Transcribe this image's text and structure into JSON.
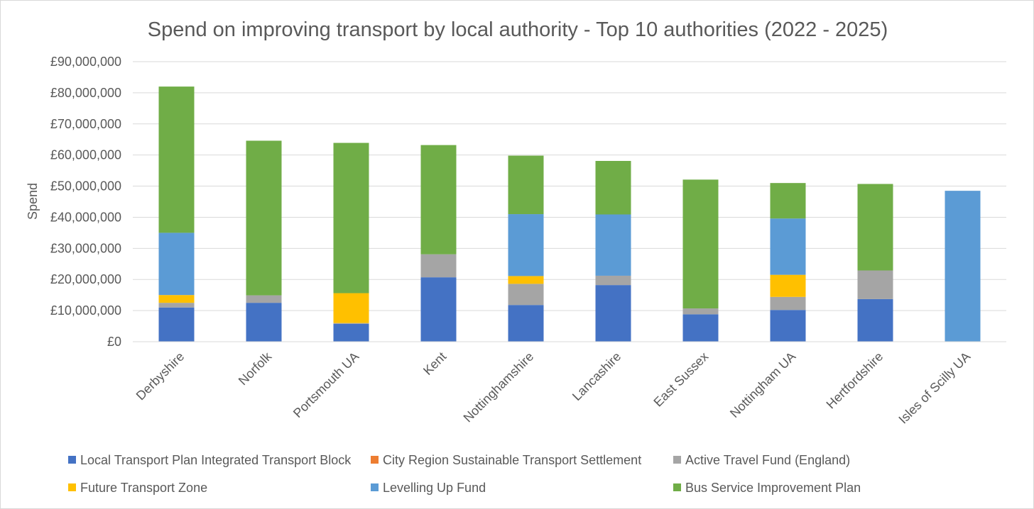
{
  "chart_data": {
    "type": "bar",
    "stacked": true,
    "title": "Spend on improving transport by local authority - Top 10 authorities (2022 - 2025)",
    "xlabel": "",
    "ylabel": "Spend",
    "ylim": [
      0,
      90000000
    ],
    "y_ticks": [
      0,
      10000000,
      20000000,
      30000000,
      40000000,
      50000000,
      60000000,
      70000000,
      80000000,
      90000000
    ],
    "y_tick_labels": [
      "£0",
      "£10,000,000",
      "£20,000,000",
      "£30,000,000",
      "£40,000,000",
      "£50,000,000",
      "£60,000,000",
      "£70,000,000",
      "£80,000,000",
      "£90,000,000"
    ],
    "grid": true,
    "legend_position": "bottom",
    "categories": [
      "Derbyshire",
      "Norfolk",
      "Portsmouth UA",
      "Kent",
      "Nottinghamshire",
      "Lancashire",
      "East Sussex",
      "Nottingham UA",
      "Hertfordshire",
      "Isles of Scilly UA"
    ],
    "series": [
      {
        "name": "Local Transport Plan Integrated Transport Block",
        "color": "#4472c4",
        "values": [
          11000000,
          12500000,
          5700000,
          20700000,
          11800000,
          18200000,
          8800000,
          10200000,
          13700000,
          0
        ]
      },
      {
        "name": "City Region Sustainable Transport Settlement",
        "color": "#ed7d31",
        "values": [
          0,
          0,
          0,
          0,
          0,
          0,
          0,
          0,
          0,
          0
        ]
      },
      {
        "name": "Active Travel Fund (England)",
        "color": "#a5a5a5",
        "values": [
          1500000,
          2400000,
          300000,
          7400000,
          6800000,
          3000000,
          1900000,
          4200000,
          9200000,
          0
        ]
      },
      {
        "name": "Future Transport Zone",
        "color": "#ffc000",
        "values": [
          2500000,
          0,
          9600000,
          0,
          2500000,
          0,
          0,
          7100000,
          0,
          0
        ]
      },
      {
        "name": "Levelling Up Fund",
        "color": "#5b9bd5",
        "values": [
          20000000,
          0,
          0,
          0,
          19900000,
          19700000,
          0,
          18100000,
          0,
          48500000
        ]
      },
      {
        "name": "Bus Service Improvement Plan",
        "color": "#70ad47",
        "values": [
          47000000,
          49700000,
          48300000,
          35100000,
          18800000,
          17200000,
          41400000,
          11400000,
          27800000,
          0
        ]
      }
    ]
  }
}
